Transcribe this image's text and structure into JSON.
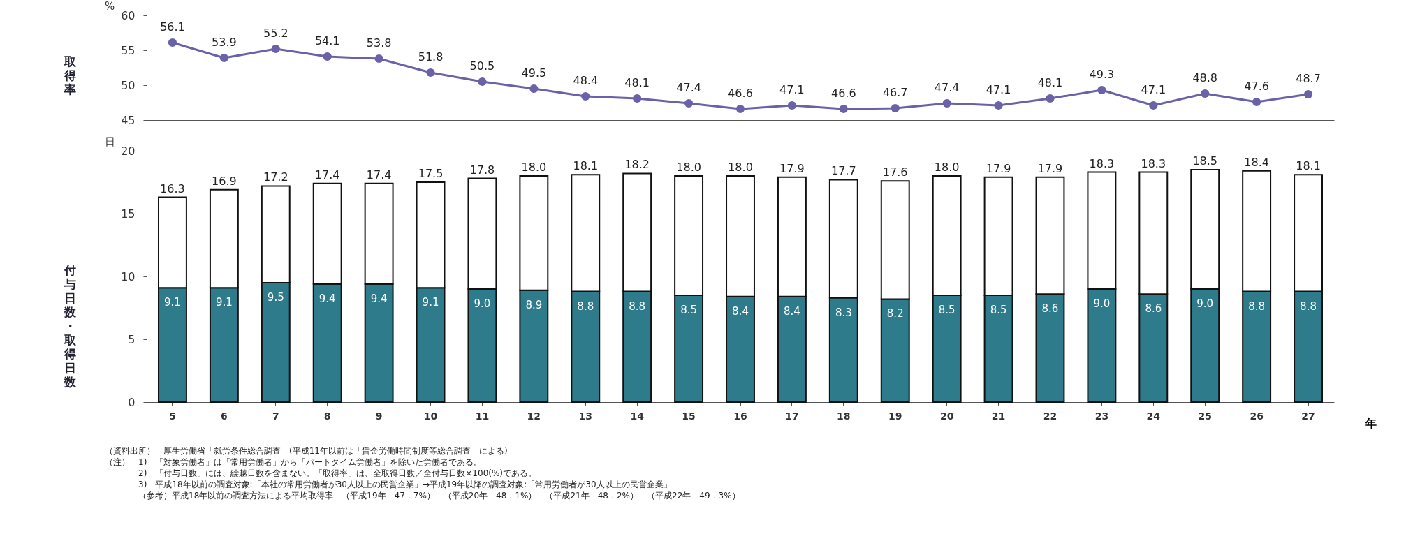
{
  "chart_data": [
    {
      "type": "line",
      "ylabel": "取得率",
      "annotations": [
        "%"
      ],
      "categories": [
        null,
        null,
        null,
        null,
        null,
        null,
        null,
        null,
        null,
        null,
        null,
        null,
        null,
        null,
        null,
        null,
        null,
        null,
        null,
        null,
        null,
        null,
        null
      ],
      "series": [
        {
          "color": "#6a62a8",
          "values": [
            56.1,
            53.9,
            55.2,
            54.1,
            53.8,
            51.8,
            50.5,
            49.5,
            48.4,
            48.1,
            47.4,
            46.6,
            47.1,
            46.6,
            46.7,
            47.4,
            47.1,
            48.1,
            49.3,
            47.1,
            48.8,
            47.6,
            48.7
          ]
        }
      ],
      "ylim": [
        45,
        60
      ],
      "yticks": [
        45,
        50,
        55,
        60
      ],
      "marker": "circle",
      "line_style": "solid",
      "data_labels": true
    },
    {
      "type": "bar",
      "stacked": true,
      "ylabel": "付与日数・取得日数",
      "xlabel": "年",
      "annotations": [
        "日",
        "（資料出所）　厚生労働省「就労条件総合調査」(平成11年以前は「賃金労働時間制度等総合調査」による)",
        "（注）　1)　「対象労働者」は「常用労働者」から「パートタイム労働者」を除いた労働者である。",
        "2)　「付与日数」には、繰越日数を含まない。「取得率」は、全取得日数／全付与日数×100(%)である。",
        "3)　平成18年以前の調査対象:「本社の常用労働者が30人以上の民営企業」→平成19年以降の調査対象:「常用労働者が30人以上の民営企業」",
        "（参考）平成18年以前の調査方法による平均取得率　（平成19年　47．7%）　（平成20年　48．1%）　（平成21年　48．2%）　（平成22年　49．3%）"
      ],
      "categories": [
        "5",
        "6",
        "7",
        "8",
        "9",
        "10",
        "11",
        "12",
        "13",
        "14",
        "15",
        "16",
        "17",
        "18",
        "19",
        "20",
        "21",
        "22",
        "23",
        "24",
        "25",
        "26",
        "27"
      ],
      "series": [
        {
          "color": "#2e7b8c",
          "values": [
            9.1,
            9.1,
            9.5,
            9.4,
            9.4,
            9.1,
            9.0,
            8.9,
            8.8,
            8.8,
            8.5,
            8.4,
            8.4,
            8.3,
            8.2,
            8.5,
            8.5,
            8.6,
            9.0,
            8.6,
            9.0,
            8.8,
            8.8
          ],
          "value_labels": [
            "9.1",
            "9.1",
            "9.5",
            "9.4",
            "9.4",
            "9.1",
            "9.0",
            "8.9",
            "8.8",
            "8.8",
            "8.5",
            "8.4",
            "8.4",
            "8.3",
            "8.2",
            "8.5",
            "8.5",
            "8.6",
            "9.0",
            "8.6",
            "9.0",
            "8.8",
            "8.8"
          ]
        },
        {
          "color": "#ffffff",
          "values": [
            7.2,
            7.8,
            7.7,
            8.0,
            8.0,
            8.4,
            8.8,
            9.1,
            9.3,
            9.4,
            9.5,
            9.6,
            9.5,
            9.4,
            9.4,
            9.5,
            9.4,
            9.3,
            9.3,
            9.7,
            9.5,
            9.6,
            9.3
          ]
        }
      ],
      "totals": [
        "16.3",
        "16.9",
        "17.2",
        "17.4",
        "17.4",
        "17.5",
        "17.8",
        "18.0",
        "18.1",
        "18.2",
        "18.0",
        "18.0",
        "17.9",
        "17.7",
        "17.6",
        "18.0",
        "17.9",
        "17.9",
        "18.3",
        "18.3",
        "18.5",
        "18.4",
        "18.1"
      ],
      "ylim": [
        0,
        20
      ],
      "yticks": [
        0,
        5,
        10,
        15,
        20
      ]
    }
  ]
}
